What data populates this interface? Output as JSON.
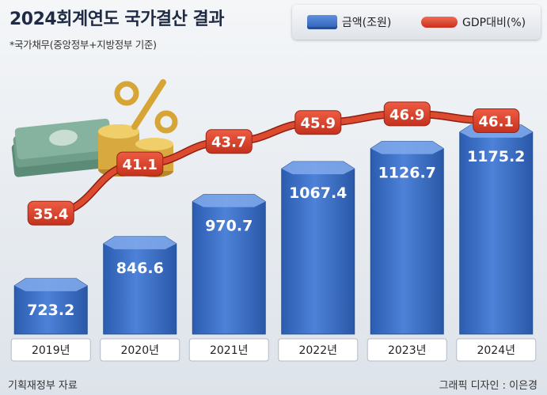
{
  "title": "2024회계연도 국가결산 결과",
  "subtitle": "*국가채무(중앙정부+지방정부 기준)",
  "legend": {
    "bar_label": "금액(조원)",
    "line_label": "GDP대비(%)"
  },
  "source": "기획재정부 자료",
  "credit": "그래픽 디자인 : 이은경",
  "colors": {
    "bar": "#3a6cc4",
    "line": "#d9412a",
    "text_dark": "#1f2a44"
  },
  "chart_data": {
    "type": "bar",
    "categories": [
      "2019년",
      "2020년",
      "2021년",
      "2022년",
      "2023년",
      "2024년"
    ],
    "series": [
      {
        "name": "금액(조원)",
        "type": "bar",
        "values": [
          723.2,
          846.6,
          970.7,
          1067.4,
          1126.7,
          1175.2
        ],
        "labels": [
          "723.2",
          "846.6",
          "970.7",
          "1067.4",
          "1126.7",
          "1175.2"
        ]
      },
      {
        "name": "GDP대비(%)",
        "type": "line",
        "values": [
          35.4,
          41.1,
          43.7,
          45.9,
          46.9,
          46.1
        ],
        "labels": [
          "35.4",
          "41.1",
          "43.7",
          "45.9",
          "46.9",
          "46.1"
        ]
      }
    ]
  }
}
